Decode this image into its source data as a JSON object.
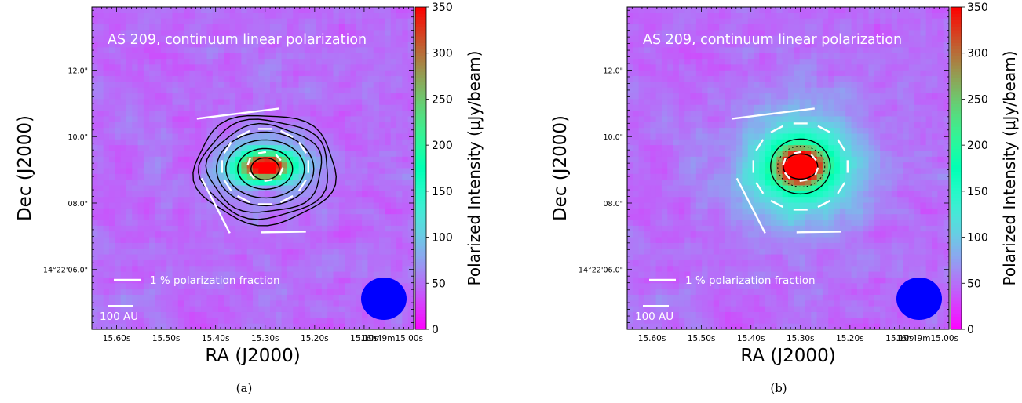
{
  "panels": [
    {
      "id": "a",
      "caption": "(a)",
      "title": "AS 209, continuum linear polarization",
      "legend_label": "1 % polarization fraction",
      "scalebar_label": "100 AU",
      "contours": "total-intensity"
    },
    {
      "id": "b",
      "caption": "(b)",
      "title": "AS 209, continuum linear polarization",
      "legend_label": "1 % polarization fraction",
      "scalebar_label": "100 AU",
      "contours": "polarized-intensity"
    }
  ],
  "chart_data": {
    "type": "heatmap",
    "xlabel": "RA (J2000)",
    "ylabel": "Dec (J2000)",
    "x_ticks": [
      "15.60s",
      "15.50s",
      "15.40s",
      "15.30s",
      "15.20s",
      "15.10s",
      "16h49m15.00s"
    ],
    "x_tick_values": [
      15.6,
      15.5,
      15.4,
      15.3,
      15.2,
      15.1,
      15.0
    ],
    "xlim": [
      15.65,
      15.0
    ],
    "y_ticks": [
      "-14°22'06.0\"",
      "08.0\"",
      "10.0\"",
      "12.0\""
    ],
    "y_tick_values": [
      6.0,
      8.0,
      10.0,
      12.0
    ],
    "ylim": [
      13.9,
      4.2
    ],
    "colorbar": {
      "label": "Polarized Intensity (μJy/beam)",
      "colormap": "rainbow",
      "range": [
        0,
        350
      ],
      "ticks": [
        0,
        50,
        100,
        150,
        200,
        250,
        300,
        350
      ]
    },
    "source_center": {
      "ra_s": 15.3,
      "dec_s": 9.1
    },
    "beam_color": "#0000ff",
    "vector_color": "#ffffff"
  }
}
